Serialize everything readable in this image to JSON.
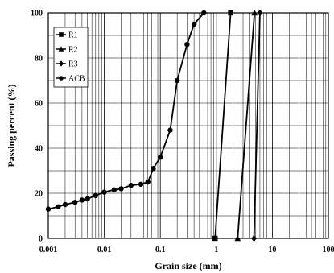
{
  "chart_data": {
    "type": "line",
    "xlabel": "Grain size (mm)",
    "ylabel": "Passing percent (%)",
    "xscale": "log",
    "xlim": [
      0.001,
      100
    ],
    "ylim": [
      0,
      100
    ],
    "x_ticks": [
      "0.001",
      "0.01",
      "0.1",
      "1",
      "10",
      "100"
    ],
    "y_ticks": [
      "0",
      "20",
      "40",
      "60",
      "80",
      "100"
    ],
    "grid": true,
    "legend_position": "top-left",
    "series": [
      {
        "name": "R1",
        "marker": "square",
        "x": [
          0.95,
          1.8
        ],
        "y": [
          0,
          100
        ]
      },
      {
        "name": "R2",
        "marker": "triangle",
        "x": [
          2.4,
          4.8
        ],
        "y": [
          0,
          100
        ]
      },
      {
        "name": "R3",
        "marker": "diamond",
        "x": [
          4.7,
          6.0
        ],
        "y": [
          0,
          100
        ]
      },
      {
        "name": "ACB",
        "marker": "circle",
        "x": [
          0.001,
          0.0015,
          0.002,
          0.003,
          0.004,
          0.005,
          0.007,
          0.01,
          0.015,
          0.02,
          0.03,
          0.045,
          0.06,
          0.075,
          0.1,
          0.15,
          0.2,
          0.3,
          0.4,
          0.6
        ],
        "y": [
          13,
          14,
          15,
          16,
          17,
          17.5,
          19,
          20.5,
          21.5,
          22,
          23.5,
          24,
          25,
          31,
          36,
          48,
          70,
          86,
          95,
          100
        ]
      }
    ]
  }
}
